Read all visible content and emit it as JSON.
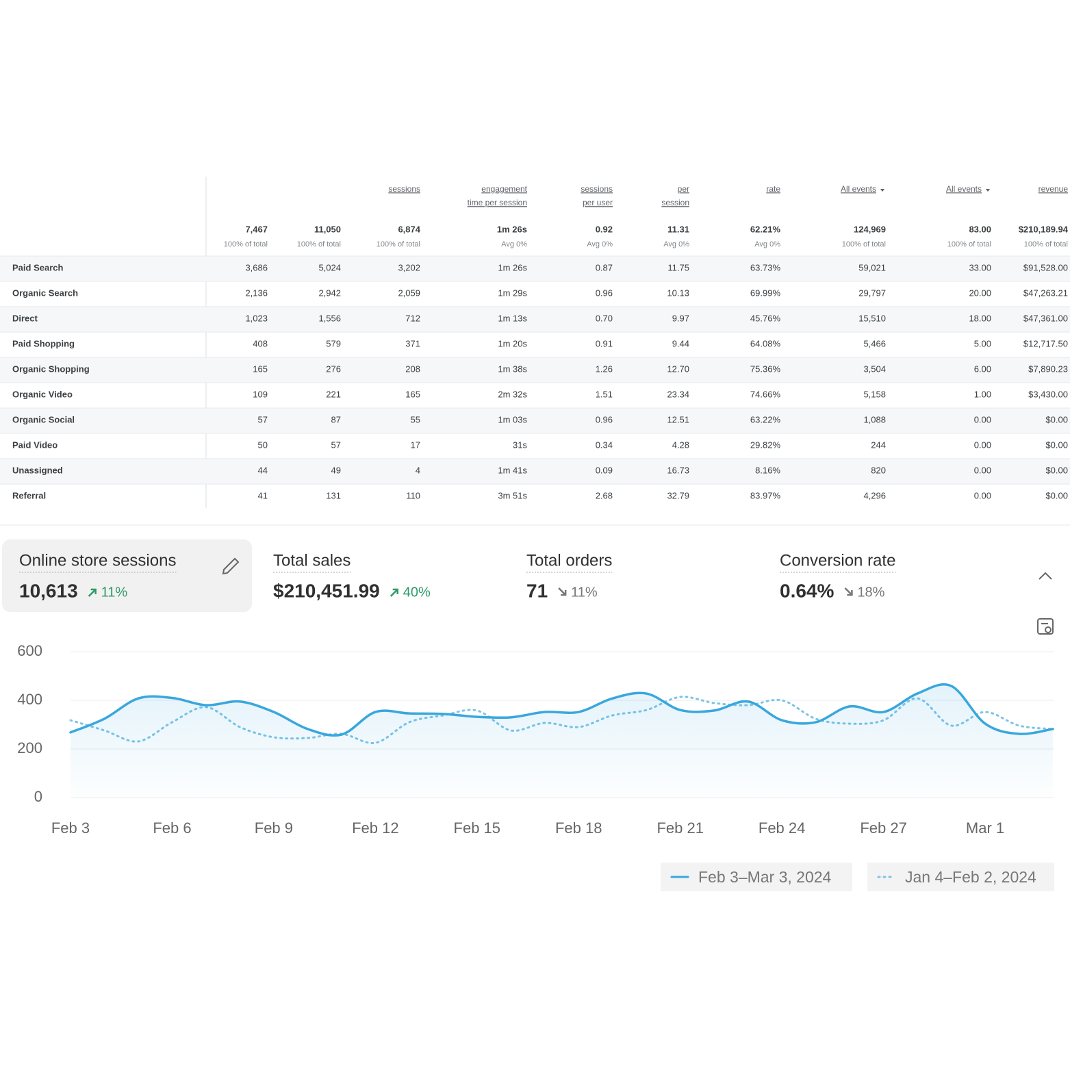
{
  "table": {
    "header": [
      null,
      null,
      null,
      [
        "sessions"
      ],
      [
        "engagement",
        "time per session"
      ],
      [
        "sessions",
        "per user"
      ],
      [
        "per",
        "session"
      ],
      [
        "rate"
      ],
      [
        "All events"
      ],
      [
        "All events"
      ],
      [
        "revenue"
      ]
    ],
    "totals": [
      {
        "value": "7,467",
        "note": "100% of total"
      },
      {
        "value": "11,050",
        "note": "100% of total"
      },
      {
        "value": "6,874",
        "note": "100% of total"
      },
      {
        "value": "1m 26s",
        "note": "Avg 0%"
      },
      {
        "value": "0.92",
        "note": "Avg 0%"
      },
      {
        "value": "11.31",
        "note": "Avg 0%"
      },
      {
        "value": "62.21%",
        "note": "Avg 0%"
      },
      {
        "value": "124,969",
        "note": "100% of total"
      },
      {
        "value": "83.00",
        "note": "100% of total"
      },
      {
        "value": "$210,189.94",
        "note": "100% of total"
      }
    ],
    "rows": [
      [
        "Paid Search",
        "3,686",
        "5,024",
        "3,202",
        "1m 26s",
        "0.87",
        "11.75",
        "63.73%",
        "59,021",
        "33.00",
        "$91,528.00"
      ],
      [
        "Organic Search",
        "2,136",
        "2,942",
        "2,059",
        "1m 29s",
        "0.96",
        "10.13",
        "69.99%",
        "29,797",
        "20.00",
        "$47,263.21"
      ],
      [
        "Direct",
        "1,023",
        "1,556",
        "712",
        "1m 13s",
        "0.70",
        "9.97",
        "45.76%",
        "15,510",
        "18.00",
        "$47,361.00"
      ],
      [
        "Paid Shopping",
        "408",
        "579",
        "371",
        "1m 20s",
        "0.91",
        "9.44",
        "64.08%",
        "5,466",
        "5.00",
        "$12,717.50"
      ],
      [
        "Organic Shopping",
        "165",
        "276",
        "208",
        "1m 38s",
        "1.26",
        "12.70",
        "75.36%",
        "3,504",
        "6.00",
        "$7,890.23"
      ],
      [
        "Organic Video",
        "109",
        "221",
        "165",
        "2m 32s",
        "1.51",
        "23.34",
        "74.66%",
        "5,158",
        "1.00",
        "$3,430.00"
      ],
      [
        "Organic Social",
        "57",
        "87",
        "55",
        "1m 03s",
        "0.96",
        "12.51",
        "63.22%",
        "1,088",
        "0.00",
        "$0.00"
      ],
      [
        "Paid Video",
        "50",
        "57",
        "17",
        "31s",
        "0.34",
        "4.28",
        "29.82%",
        "244",
        "0.00",
        "$0.00"
      ],
      [
        "Unassigned",
        "44",
        "49",
        "4",
        "1m 41s",
        "0.09",
        "16.73",
        "8.16%",
        "820",
        "0.00",
        "$0.00"
      ],
      [
        "Referral",
        "41",
        "131",
        "110",
        "3m 51s",
        "2.68",
        "32.79",
        "83.97%",
        "4,296",
        "0.00",
        "$0.00"
      ]
    ]
  },
  "kpis": [
    {
      "label": "Online store sessions",
      "value": "10,613",
      "change": "11%",
      "trend": "up"
    },
    {
      "label": "Total sales",
      "value": "$210,451.99",
      "change": "40%",
      "trend": "up"
    },
    {
      "label": "Total orders",
      "value": "71",
      "change": "11%",
      "trend": "down"
    },
    {
      "label": "Conversion rate",
      "value": "0.64%",
      "change": "18%",
      "trend": "down"
    }
  ],
  "chart_data": {
    "type": "line",
    "categories": [
      "Feb 3",
      null,
      null,
      "Feb 6",
      null,
      null,
      "Feb 9",
      null,
      null,
      "Feb 12",
      null,
      null,
      "Feb 15",
      null,
      null,
      "Feb 18",
      null,
      null,
      "Feb 21",
      null,
      null,
      "Feb 24",
      null,
      null,
      "Feb 27",
      null,
      null,
      "Mar 1",
      null,
      null
    ],
    "series": [
      {
        "name": "Feb 3–Mar 3, 2024",
        "color": "#39a7dd",
        "style": "solid",
        "values": [
          268,
          324,
          408,
          410,
          380,
          395,
          352,
          282,
          259,
          352,
          346,
          344,
          332,
          330,
          352,
          352,
          408,
          428,
          360,
          358,
          395,
          318,
          310,
          375,
          352,
          428,
          459,
          304,
          262,
          282
        ]
      },
      {
        "name": "Jan 4–Feb 2, 2024",
        "color": "#7cc4e6",
        "style": "dotted",
        "values": [
          318,
          276,
          231,
          310,
          372,
          290,
          248,
          245,
          262,
          225,
          310,
          338,
          358,
          276,
          307,
          290,
          338,
          360,
          414,
          389,
          380,
          400,
          324,
          304,
          318,
          408,
          296,
          352,
          296,
          282
        ]
      }
    ],
    "ylim": [
      0,
      600
    ],
    "yticks": [
      0,
      200,
      400,
      600
    ],
    "grid": true
  }
}
